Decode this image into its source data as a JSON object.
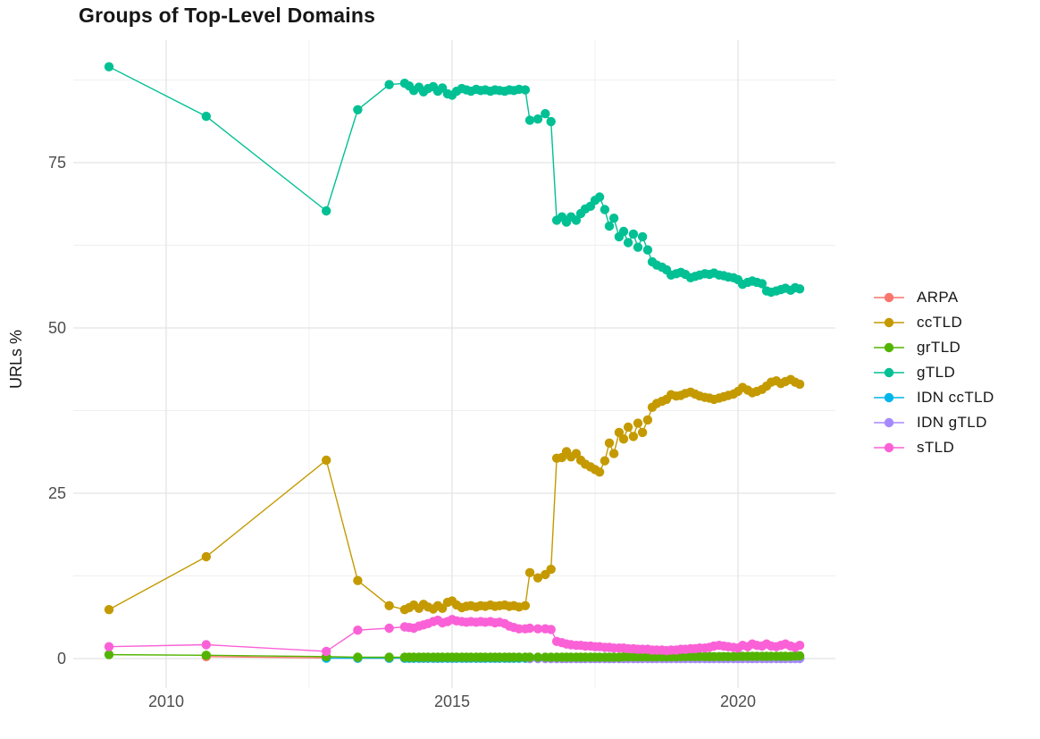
{
  "chart_data": {
    "type": "line",
    "title": "Groups of Top-Level Domains",
    "xlabel": "",
    "ylabel": "URLs %",
    "x_ticks": [
      2010,
      2015,
      2020
    ],
    "x_minor_ticks": [
      2012.5,
      2017.5
    ],
    "y_ticks": [
      0,
      25,
      50,
      75
    ],
    "y_minor_ticks": [
      12.5,
      37.5,
      62.5,
      87.5
    ],
    "xlim": [
      2008.4,
      2021.7
    ],
    "ylim": [
      -4.5,
      93.5
    ],
    "grid": "major+minor",
    "legend_position": "right",
    "x": [
      2009.0,
      2010.7,
      2012.8,
      2013.35,
      2013.9,
      2014.17,
      2014.25,
      2014.33,
      2014.42,
      2014.5,
      2014.58,
      2014.67,
      2014.75,
      2014.83,
      2014.92,
      2015.0,
      2015.08,
      2015.17,
      2015.25,
      2015.33,
      2015.42,
      2015.5,
      2015.58,
      2015.67,
      2015.75,
      2015.83,
      2015.92,
      2016.0,
      2016.08,
      2016.17,
      2016.28,
      2016.36,
      2016.5,
      2016.63,
      2016.73,
      2016.83,
      2016.92,
      2017.0,
      2017.08,
      2017.17,
      2017.25,
      2017.33,
      2017.42,
      2017.5,
      2017.58,
      2017.67,
      2017.75,
      2017.83,
      2017.92,
      2018.0,
      2018.08,
      2018.17,
      2018.25,
      2018.33,
      2018.42,
      2018.5,
      2018.58,
      2018.67,
      2018.75,
      2018.83,
      2018.92,
      2019.0,
      2019.08,
      2019.17,
      2019.25,
      2019.33,
      2019.42,
      2019.5,
      2019.58,
      2019.67,
      2019.75,
      2019.83,
      2019.92,
      2020.0,
      2020.08,
      2020.17,
      2020.25,
      2020.33,
      2020.42,
      2020.5,
      2020.58,
      2020.67,
      2020.75,
      2020.83,
      2020.92,
      2021.0,
      2021.08
    ],
    "series": [
      {
        "name": "ARPA",
        "color": "#F8766D",
        "values": [
          null,
          0.3,
          0.1,
          0.05,
          0.05,
          0.05,
          0.05,
          0.05,
          0.05,
          0.05,
          0.05,
          0.05,
          0.05,
          0.05,
          0.05,
          0.05,
          0.05,
          0.05,
          0.05,
          0.05,
          0.05,
          0.05,
          0.05,
          0.05,
          0.05,
          0.05,
          0.05,
          0.05,
          0.05,
          0.05,
          0.05,
          0.05,
          0.05,
          0.05,
          0.05,
          0.05,
          0.05,
          0.05,
          0.05,
          0.05,
          0.05,
          0.05,
          0.05,
          0.05,
          0.05,
          0.05,
          0.05,
          0.05,
          0.05,
          0.05,
          0.05,
          0.05,
          0.05,
          0.05,
          0.05,
          0.05,
          0.05,
          0.05,
          0.05,
          0.05,
          0.05,
          0.05,
          0.05,
          0.05,
          0.05,
          0.05,
          0.05,
          0.05,
          0.05,
          0.05,
          0.05,
          0.05,
          0.05,
          0.05,
          0.05,
          0.05,
          0.05,
          0.05,
          0.05,
          0.05,
          0.05,
          0.05,
          0.05,
          0.05,
          0.05,
          0.05,
          0.05
        ]
      },
      {
        "name": "ccTLD",
        "color": "#C49A00",
        "values": [
          7.4,
          15.4,
          30.0,
          11.8,
          8.0,
          7.4,
          7.7,
          8.1,
          7.6,
          8.2,
          7.8,
          7.5,
          8.0,
          7.6,
          8.5,
          8.7,
          8.1,
          7.7,
          7.9,
          8.0,
          7.8,
          8.0,
          7.9,
          8.1,
          7.9,
          8.0,
          8.1,
          7.9,
          8.0,
          7.8,
          8.0,
          13.0,
          12.2,
          12.7,
          13.5,
          30.3,
          30.4,
          31.3,
          30.5,
          31.0,
          30.0,
          29.4,
          29.0,
          28.6,
          28.2,
          29.9,
          32.6,
          31.0,
          34.2,
          33.2,
          35.0,
          33.6,
          35.6,
          34.2,
          36.1,
          38.0,
          38.6,
          38.9,
          39.2,
          39.9,
          39.7,
          39.8,
          40.1,
          40.3,
          40.0,
          39.7,
          39.5,
          39.4,
          39.2,
          39.4,
          39.6,
          39.8,
          40.0,
          40.4,
          41.0,
          40.6,
          40.2,
          40.4,
          40.7,
          41.2,
          41.8,
          42.0,
          41.6,
          41.9,
          42.2,
          41.8,
          41.5
        ]
      },
      {
        "name": "grTLD",
        "color": "#53B400",
        "values": [
          0.6,
          0.5,
          0.3,
          0.2,
          0.2,
          0.2,
          0.2,
          0.2,
          0.2,
          0.2,
          0.2,
          0.2,
          0.2,
          0.2,
          0.2,
          0.2,
          0.2,
          0.2,
          0.2,
          0.2,
          0.2,
          0.2,
          0.2,
          0.2,
          0.2,
          0.2,
          0.2,
          0.2,
          0.2,
          0.2,
          0.2,
          0.2,
          0.2,
          0.2,
          0.2,
          0.2,
          0.2,
          0.2,
          0.2,
          0.2,
          0.2,
          0.2,
          0.2,
          0.2,
          0.2,
          0.2,
          0.2,
          0.2,
          0.2,
          0.25,
          0.25,
          0.25,
          0.25,
          0.25,
          0.25,
          0.25,
          0.25,
          0.25,
          0.25,
          0.25,
          0.25,
          0.3,
          0.3,
          0.3,
          0.3,
          0.3,
          0.3,
          0.3,
          0.3,
          0.3,
          0.3,
          0.3,
          0.3,
          0.35,
          0.35,
          0.35,
          0.35,
          0.35,
          0.35,
          0.35,
          0.35,
          0.35,
          0.35,
          0.35,
          0.35,
          0.4,
          0.4
        ]
      },
      {
        "name": "gTLD",
        "color": "#00C094",
        "values": [
          89.5,
          82.0,
          67.7,
          83.0,
          86.8,
          87.0,
          86.6,
          85.9,
          86.4,
          85.7,
          86.2,
          86.5,
          85.8,
          86.3,
          85.4,
          85.2,
          85.8,
          86.2,
          86.0,
          85.8,
          86.1,
          85.9,
          86.0,
          85.8,
          86.0,
          85.9,
          85.8,
          86.0,
          85.9,
          86.1,
          86.0,
          81.4,
          81.6,
          82.4,
          81.2,
          66.3,
          66.8,
          66.0,
          66.8,
          66.3,
          67.3,
          68.0,
          68.4,
          69.3,
          69.8,
          67.9,
          65.4,
          66.6,
          63.8,
          64.6,
          62.9,
          64.2,
          62.2,
          63.8,
          61.8,
          60.0,
          59.5,
          59.2,
          58.8,
          58.0,
          58.2,
          58.4,
          58.1,
          57.6,
          57.8,
          58.0,
          58.2,
          58.1,
          58.3,
          58.0,
          57.9,
          57.7,
          57.6,
          57.3,
          56.6,
          56.9,
          57.1,
          56.9,
          56.7,
          55.6,
          55.4,
          55.6,
          55.8,
          56.0,
          55.7,
          56.1,
          55.9
        ]
      },
      {
        "name": "IDN ccTLD",
        "color": "#00B6EB",
        "values": [
          null,
          null,
          0.05,
          0.05,
          0.05,
          0.05,
          0.05,
          0.05,
          0.05,
          0.05,
          0.05,
          0.05,
          0.05,
          0.05,
          0.05,
          0.05,
          0.05,
          0.05,
          0.05,
          0.05,
          0.05,
          0.05,
          0.05,
          0.05,
          0.05,
          0.05,
          0.05,
          0.05,
          0.05,
          0.05,
          0.05,
          0.05,
          0.05,
          0.05,
          0.05,
          0.05,
          0.05,
          0.05,
          0.05,
          0.05,
          0.05,
          0.05,
          0.05,
          0.05,
          0.05,
          0.05,
          0.05,
          0.05,
          0.05,
          0.05,
          0.05,
          0.05,
          0.05,
          0.05,
          0.05,
          0.05,
          0.05,
          0.05,
          0.05,
          0.05,
          0.05,
          0.05,
          0.05,
          0.05,
          0.05,
          0.05,
          0.05,
          0.05,
          0.05,
          0.05,
          0.05,
          0.05,
          0.05,
          0.05,
          0.05,
          0.05,
          0.05,
          0.05,
          0.05,
          0.05,
          0.05,
          0.05,
          0.05,
          0.05,
          0.05,
          0.05,
          0.05
        ]
      },
      {
        "name": "IDN gTLD",
        "color": "#A58AFF",
        "values": [
          null,
          null,
          null,
          null,
          null,
          null,
          null,
          null,
          null,
          null,
          null,
          null,
          null,
          null,
          null,
          null,
          null,
          null,
          null,
          null,
          null,
          null,
          null,
          null,
          null,
          null,
          null,
          null,
          null,
          null,
          null,
          0,
          0,
          0,
          0,
          0,
          0,
          0,
          0,
          0,
          0,
          0,
          0,
          0,
          0,
          0,
          0,
          0,
          0,
          0,
          0,
          0,
          0,
          0,
          0,
          0,
          0,
          0,
          0,
          0,
          0,
          0,
          0,
          0,
          0,
          0,
          0,
          0,
          0,
          0,
          0,
          0,
          0,
          0,
          0,
          0,
          0,
          0,
          0,
          0,
          0,
          0,
          0,
          0,
          0,
          0,
          0
        ]
      },
      {
        "name": "sTLD",
        "color": "#FB61D7",
        "values": [
          1.8,
          2.1,
          1.1,
          4.3,
          4.6,
          4.8,
          4.7,
          4.6,
          4.9,
          5.1,
          5.3,
          5.6,
          5.8,
          5.4,
          5.6,
          5.9,
          5.7,
          5.6,
          5.5,
          5.6,
          5.5,
          5.6,
          5.5,
          5.6,
          5.4,
          5.5,
          5.3,
          4.9,
          4.7,
          4.5,
          4.5,
          4.6,
          4.5,
          4.5,
          4.4,
          2.6,
          2.4,
          2.2,
          2.1,
          2.0,
          2.0,
          1.9,
          1.9,
          1.8,
          1.8,
          1.7,
          1.7,
          1.6,
          1.6,
          1.6,
          1.5,
          1.5,
          1.4,
          1.4,
          1.4,
          1.3,
          1.3,
          1.3,
          1.2,
          1.3,
          1.3,
          1.4,
          1.4,
          1.5,
          1.5,
          1.6,
          1.6,
          1.7,
          1.9,
          2.0,
          1.9,
          1.8,
          1.7,
          1.6,
          2.0,
          1.8,
          2.2,
          2.0,
          1.9,
          2.2,
          1.9,
          1.8,
          2.0,
          2.2,
          1.9,
          1.7,
          2.0
        ]
      }
    ]
  }
}
